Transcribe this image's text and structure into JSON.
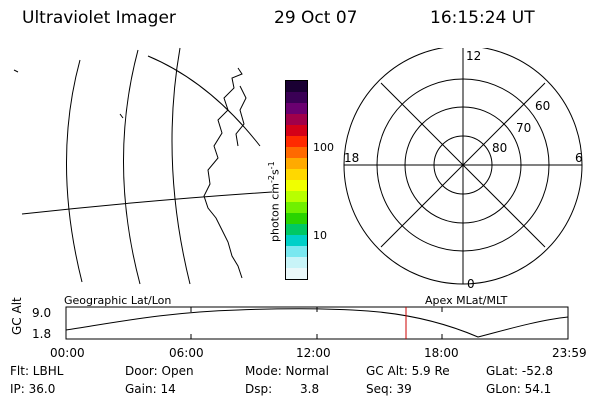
{
  "header": {
    "title": "Ultraviolet Imager",
    "date": "29 Oct 07",
    "time": "16:15:24 UT"
  },
  "colorbar": {
    "tick_100": "100",
    "tick_10": "10",
    "title_main": "photon cm",
    "title_sup1": "-2",
    "title_mid": "s",
    "title_sup2": "-1",
    "colors": [
      "#1a0033",
      "#3a0055",
      "#6a0070",
      "#a0004a",
      "#d40018",
      "#ff2a00",
      "#ff6a00",
      "#ffaa00",
      "#ffd800",
      "#f0ff00",
      "#b8ff00",
      "#70f000",
      "#2ad400",
      "#00c864",
      "#00d0c8",
      "#7ae8f0",
      "#c8f4f8",
      "#eaf8fa"
    ]
  },
  "polar_plot": {
    "mlt_12": "12",
    "mlt_18": "18",
    "mlt_6": "6",
    "mlt_0": "0",
    "lat_60": "60",
    "lat_70": "70",
    "lat_80": "80"
  },
  "timeline": {
    "y_label": "GC Alt",
    "y_max": "9.0",
    "y_min": "1.8",
    "left_caption": "Geographic Lat/Lon",
    "right_caption": "Apex MLat/MLT",
    "ticks": [
      "00:00",
      "06:00",
      "12:00",
      "18:00",
      "23:59"
    ],
    "marker_color": "#cc0000"
  },
  "status": {
    "flt": "Flt: LBHL",
    "ip": "IP: 36.0",
    "door": "Door: Open",
    "gain": "Gain: 14",
    "mode": "Mode: Normal",
    "dsp_label": "Dsp:",
    "dsp_value": "3.8",
    "gc_alt": "GC Alt: 5.9 Re",
    "seq": "Seq: 39",
    "glat": "GLat: -52.8",
    "glon": "GLon: 54.1"
  }
}
